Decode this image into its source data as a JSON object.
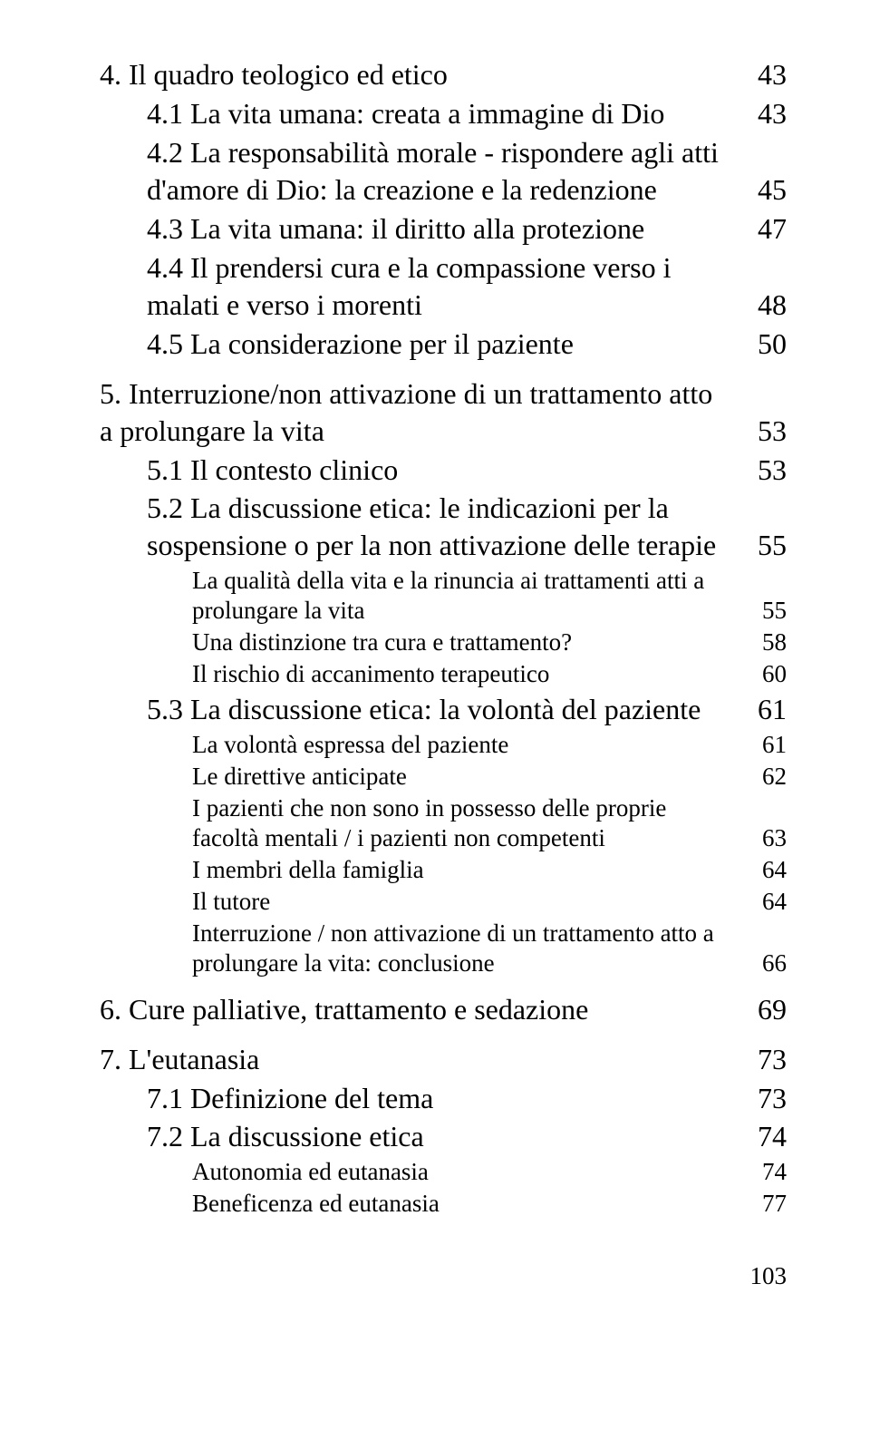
{
  "entries": [
    {
      "level": 1,
      "text": "4. Il quadro teologico ed etico",
      "page": "43"
    },
    {
      "level": 2,
      "text": "4.1 La vita umana: creata a immagine di Dio",
      "page": "43"
    },
    {
      "level": 2,
      "text": "4.2 La responsabilità morale - rispondere agli atti d'amore di Dio: la creazione e la redenzione",
      "page": "45"
    },
    {
      "level": 2,
      "text": "4.3 La vita umana: il diritto alla protezione",
      "page": "47"
    },
    {
      "level": 2,
      "text": "4.4 Il prendersi cura e la compassione verso i malati e verso i morenti",
      "page": "48"
    },
    {
      "level": 2,
      "text": "4.5 La considerazione per il paziente",
      "page": "50"
    },
    {
      "level": 1,
      "text": "5. Interruzione/non attivazione di un trattamento atto a prolungare la vita",
      "page": "53"
    },
    {
      "level": 2,
      "text": "5.1 Il contesto clinico",
      "page": "53"
    },
    {
      "level": 2,
      "text": "5.2 La discussione etica: le indicazioni per la sospensione o per la non attivazione delle terapie",
      "page": "55"
    },
    {
      "level": 3,
      "text": "La qualità della vita e la rinuncia ai trattamenti atti a prolungare la vita",
      "page": "55"
    },
    {
      "level": 3,
      "text": "Una distinzione tra cura e trattamento?",
      "page": "58"
    },
    {
      "level": 3,
      "text": "Il rischio di accanimento terapeutico",
      "page": "60"
    },
    {
      "level": 2,
      "text": "5.3 La discussione etica: la volontà del paziente",
      "page": "61"
    },
    {
      "level": 3,
      "text": "La volontà espressa del paziente",
      "page": "61"
    },
    {
      "level": 3,
      "text": "Le direttive anticipate",
      "page": "62"
    },
    {
      "level": 3,
      "text": "I pazienti che non sono in possesso delle proprie facoltà mentali / i pazienti non competenti",
      "page": "63"
    },
    {
      "level": 3,
      "text": "I membri della famiglia",
      "page": "64"
    },
    {
      "level": 3,
      "text": "Il tutore",
      "page": "64"
    },
    {
      "level": 3,
      "text": "Interruzione / non attivazione di un trattamento atto a prolungare la vita: conclusione",
      "page": "66"
    },
    {
      "level": 1,
      "text": "6. Cure palliative, trattamento e sedazione",
      "page": "69"
    },
    {
      "level": 1,
      "text": "7. L'eutanasia",
      "page": "73"
    },
    {
      "level": 2,
      "text": "7.1 Definizione del tema",
      "page": "73"
    },
    {
      "level": 2,
      "text": "7.2 La discussione etica",
      "page": "74"
    },
    {
      "level": 3,
      "text": "Autonomia ed eutanasia",
      "page": "74"
    },
    {
      "level": 3,
      "text": "Beneficenza ed eutanasia",
      "page": "77"
    }
  ],
  "footer_page": "103"
}
